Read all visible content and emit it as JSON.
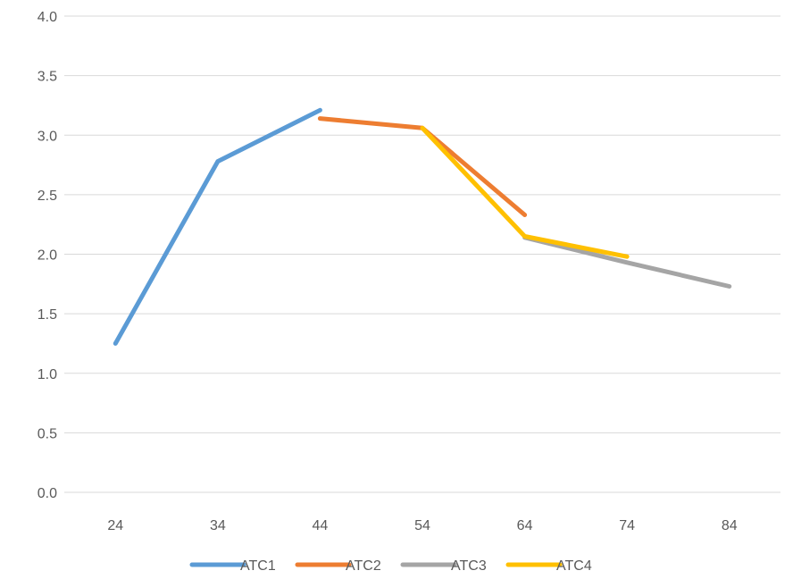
{
  "chart_data": {
    "type": "line",
    "title": "",
    "xlabel": "",
    "ylabel": "",
    "categories": [
      "24",
      "34",
      "44",
      "54",
      "64",
      "74",
      "84"
    ],
    "ylim": [
      0,
      4.0
    ],
    "y_ticks": [
      "0.0",
      "0.5",
      "1.0",
      "1.5",
      "2.0",
      "2.5",
      "3.0",
      "3.5",
      "4.0"
    ],
    "grid": true,
    "legend_position": "bottom",
    "series": [
      {
        "name": "ATC1",
        "color": "#5b9bd5",
        "values": [
          1.25,
          2.78,
          3.21,
          null,
          null,
          null,
          null
        ]
      },
      {
        "name": "ATC2",
        "color": "#ed7d31",
        "values": [
          null,
          null,
          3.14,
          3.06,
          2.33,
          null,
          null
        ]
      },
      {
        "name": "ATC3",
        "color": "#a5a5a5",
        "values": [
          null,
          null,
          null,
          null,
          2.14,
          1.93,
          1.73
        ]
      },
      {
        "name": "ATC4",
        "color": "#ffc000",
        "values": [
          null,
          null,
          null,
          3.06,
          2.15,
          1.98,
          null
        ]
      }
    ]
  }
}
